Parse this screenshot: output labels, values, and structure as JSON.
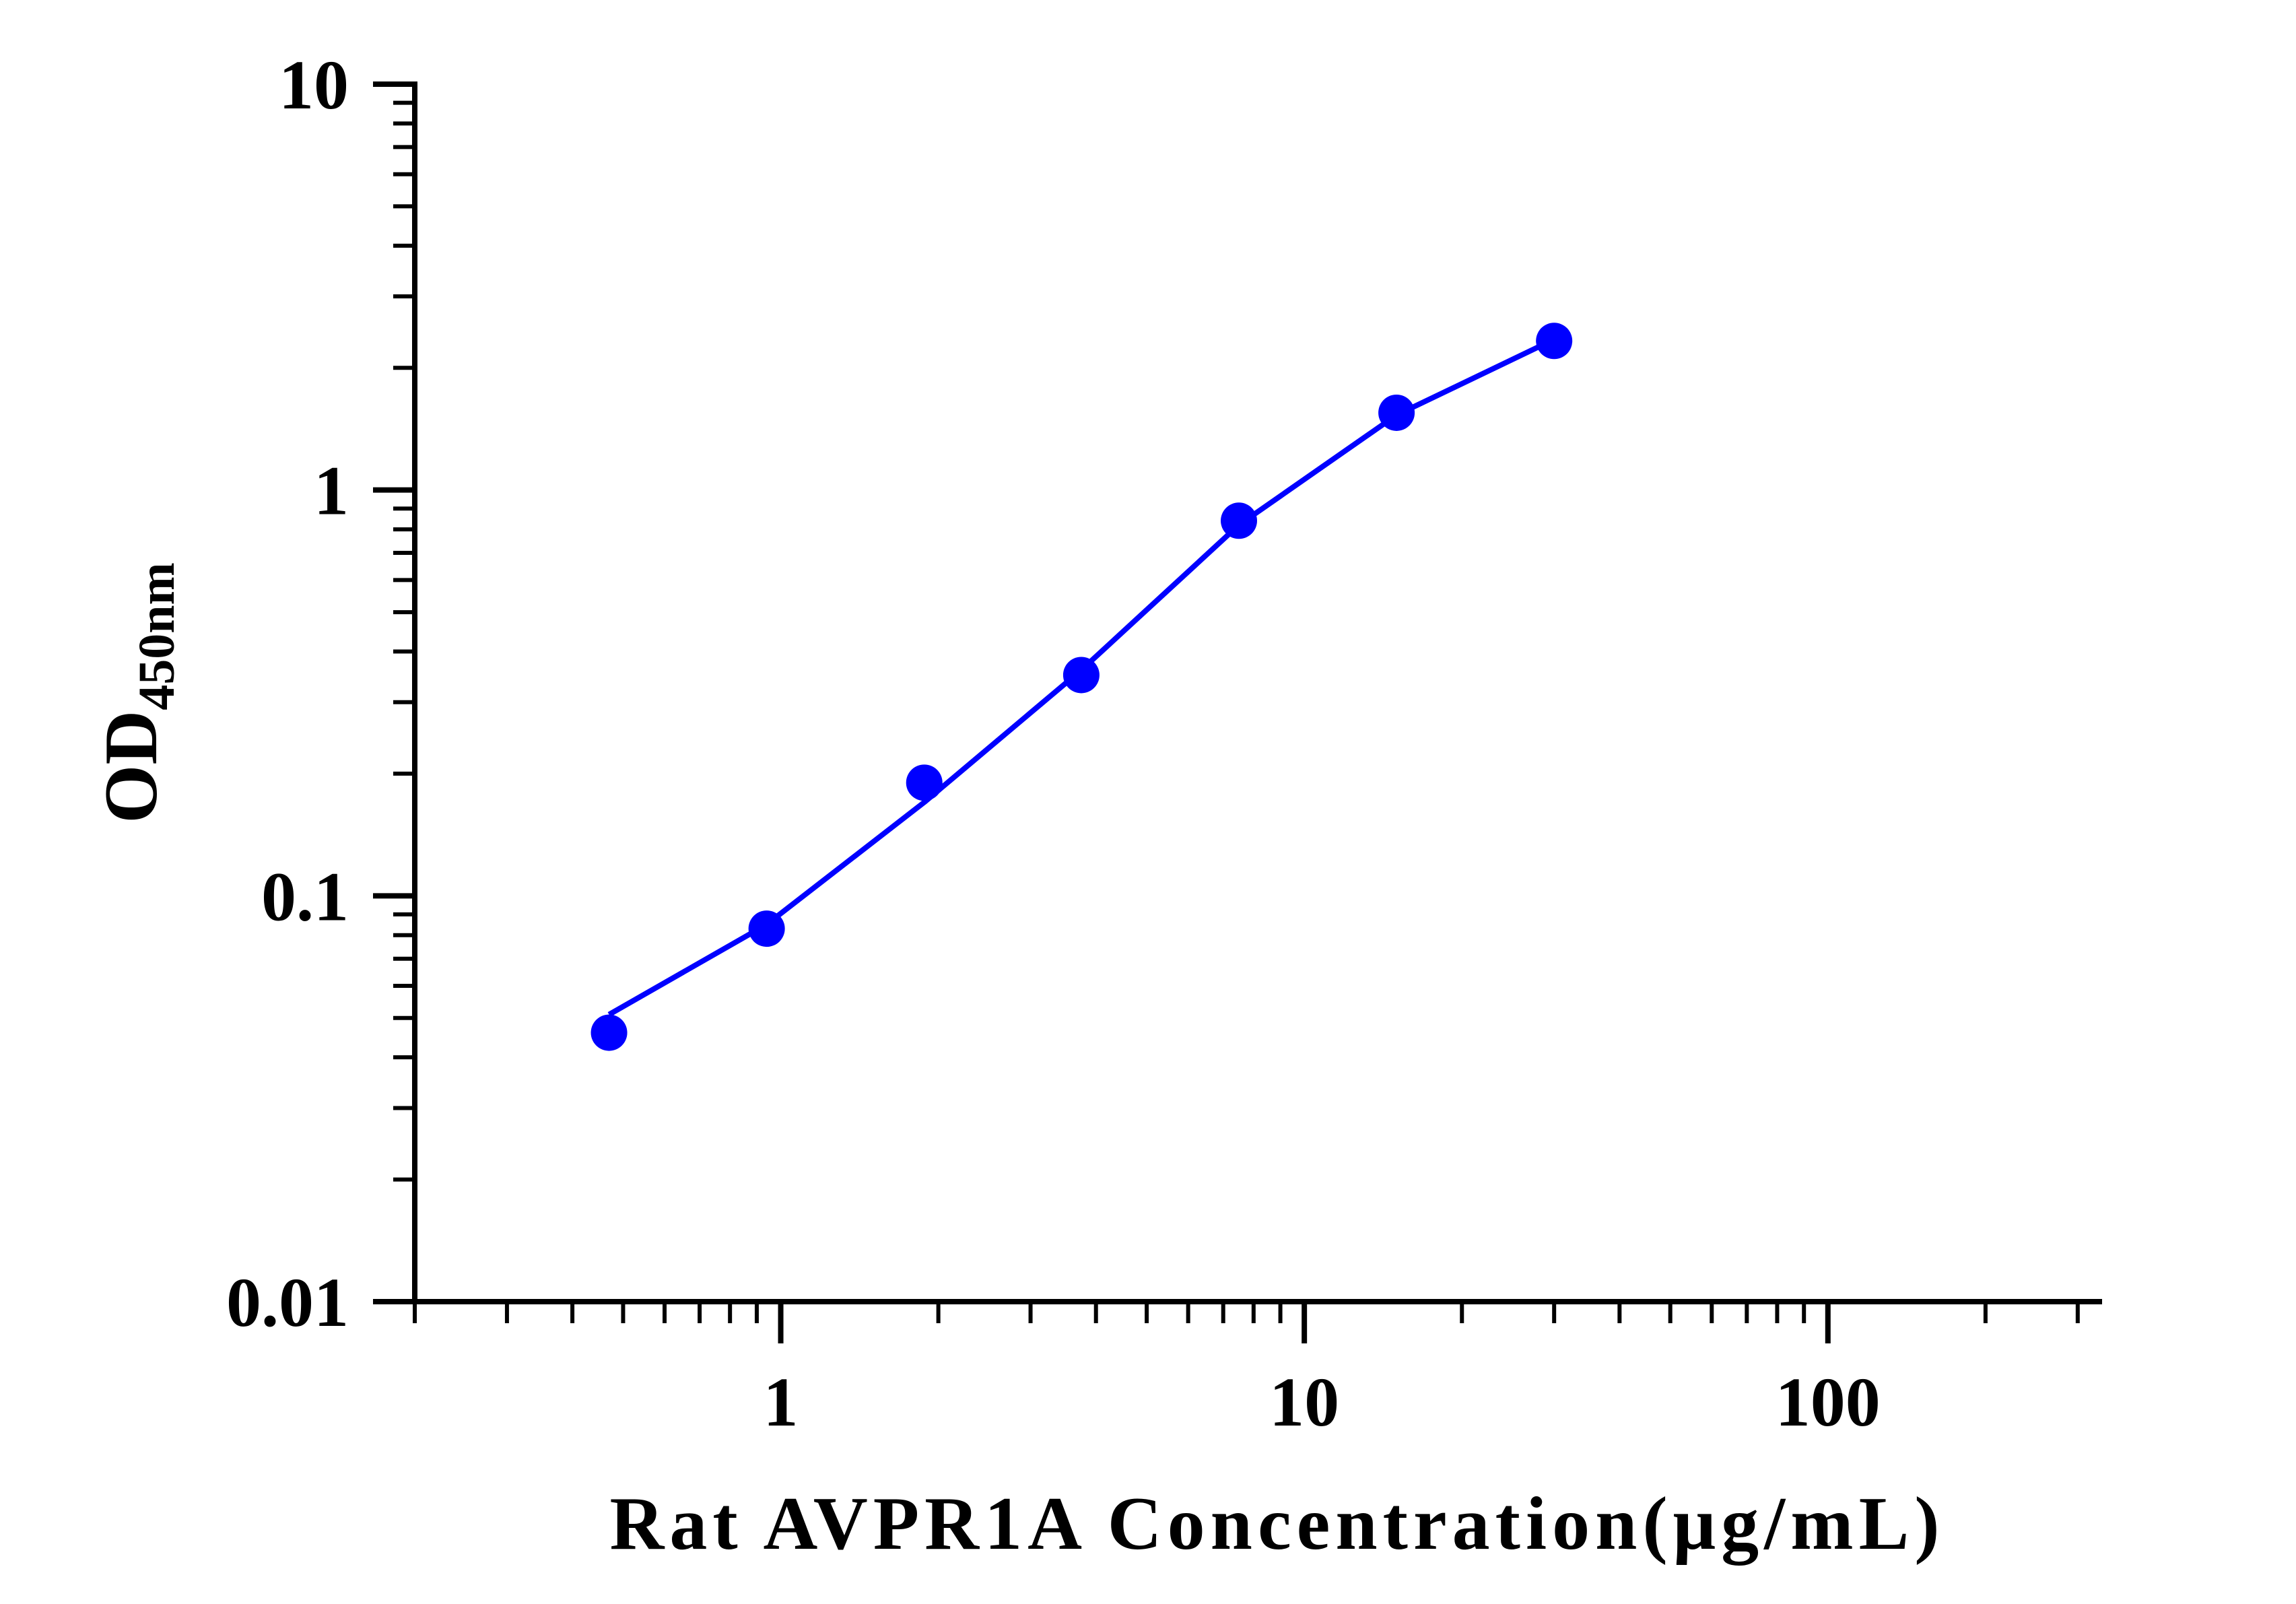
{
  "chart_data": {
    "type": "line",
    "xlabel": "Rat AVPR1A Concentration(μg/mL)",
    "ylabel": "OD",
    "ylabel_subscript": "450nm",
    "xscale": "log",
    "yscale": "log",
    "xlim": [
      0.2,
      330
    ],
    "ylim": [
      0.01,
      10
    ],
    "x_tick_labels": [
      "1",
      "10",
      "100"
    ],
    "x_tick_values": [
      1,
      10,
      100
    ],
    "y_tick_labels": [
      "0.01",
      "0.1",
      "1",
      "10"
    ],
    "y_tick_values": [
      0.01,
      0.1,
      1,
      10
    ],
    "grid": false,
    "series": [
      {
        "color": "#0000ff",
        "markers": "circle",
        "x": [
          0.47,
          0.94,
          1.88,
          3.75,
          7.5,
          15,
          30
        ],
        "y": [
          0.046,
          0.083,
          0.19,
          0.35,
          0.84,
          1.55,
          2.33
        ],
        "fit_x": [
          0.47,
          0.94,
          1.88,
          3.75,
          7.5,
          15,
          30
        ],
        "fit_y": [
          0.051,
          0.085,
          0.17,
          0.36,
          0.82,
          1.53,
          2.35
        ]
      }
    ]
  }
}
